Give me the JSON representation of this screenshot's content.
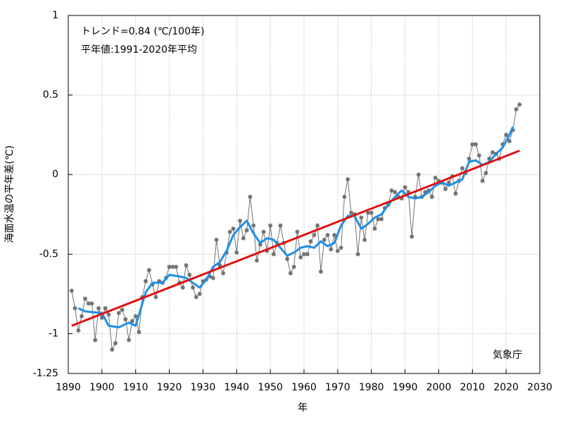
{
  "chart_data": {
    "type": "line",
    "annotations": [
      "トレンド=0.84 (℃/100年)",
      "平年値:1991-2020年平均"
    ],
    "source": "気象庁",
    "y_label": "海面水温の平年差(℃)",
    "x_label": "年",
    "xlim": [
      1890,
      2030
    ],
    "xticks": [
      1890,
      1900,
      1910,
      1920,
      1930,
      1940,
      1950,
      1960,
      1970,
      1980,
      1990,
      2000,
      2010,
      2020,
      2030
    ],
    "ylim": [
      -1.25,
      1
    ],
    "yticks": [
      1,
      0.5,
      0,
      -0.5,
      -1,
      -1.25
    ],
    "grid": true,
    "series": [
      {
        "color": "#707070",
        "line_width": 1,
        "marker": true,
        "x": [
          1891,
          1892,
          1893,
          1894,
          1895,
          1896,
          1897,
          1898,
          1899,
          1900,
          1901,
          1902,
          1903,
          1904,
          1905,
          1906,
          1907,
          1908,
          1909,
          1910,
          1911,
          1912,
          1913,
          1914,
          1915,
          1916,
          1917,
          1918,
          1919,
          1920,
          1921,
          1922,
          1923,
          1924,
          1925,
          1926,
          1927,
          1928,
          1929,
          1930,
          1931,
          1932,
          1933,
          1934,
          1935,
          1936,
          1937,
          1938,
          1939,
          1940,
          1941,
          1942,
          1943,
          1944,
          1945,
          1946,
          1947,
          1948,
          1949,
          1950,
          1951,
          1952,
          1953,
          1954,
          1955,
          1956,
          1957,
          1958,
          1959,
          1960,
          1961,
          1962,
          1963,
          1964,
          1965,
          1966,
          1967,
          1968,
          1969,
          1970,
          1971,
          1972,
          1973,
          1974,
          1975,
          1976,
          1977,
          1978,
          1979,
          1980,
          1981,
          1982,
          1983,
          1984,
          1985,
          1986,
          1987,
          1988,
          1989,
          1990,
          1991,
          1992,
          1993,
          1994,
          1995,
          1996,
          1997,
          1998,
          1999,
          2000,
          2001,
          2002,
          2003,
          2004,
          2005,
          2006,
          2007,
          2008,
          2009,
          2010,
          2011,
          2012,
          2013,
          2014,
          2015,
          2016,
          2017,
          2018,
          2019,
          2020,
          2021,
          2022,
          2023,
          2024
        ],
        "values": [
          -0.73,
          -0.84,
          -0.98,
          -0.89,
          -0.78,
          -0.81,
          -0.81,
          -1.04,
          -0.84,
          -0.9,
          -0.84,
          -0.88,
          -1.1,
          -1.06,
          -0.87,
          -0.85,
          -0.91,
          -1.04,
          -0.92,
          -0.89,
          -0.99,
          -0.77,
          -0.67,
          -0.6,
          -0.69,
          -0.77,
          -0.67,
          -0.68,
          -0.65,
          -0.58,
          -0.58,
          -0.58,
          -0.68,
          -0.71,
          -0.57,
          -0.63,
          -0.71,
          -0.77,
          -0.75,
          -0.67,
          -0.66,
          -0.64,
          -0.65,
          -0.41,
          -0.57,
          -0.62,
          -0.49,
          -0.36,
          -0.34,
          -0.49,
          -0.29,
          -0.4,
          -0.35,
          -0.14,
          -0.32,
          -0.54,
          -0.44,
          -0.36,
          -0.48,
          -0.32,
          -0.5,
          -0.43,
          -0.32,
          -0.43,
          -0.53,
          -0.62,
          -0.58,
          -0.36,
          -0.52,
          -0.5,
          -0.5,
          -0.42,
          -0.38,
          -0.32,
          -0.61,
          -0.41,
          -0.38,
          -0.47,
          -0.38,
          -0.48,
          -0.46,
          -0.14,
          -0.03,
          -0.24,
          -0.25,
          -0.5,
          -0.27,
          -0.41,
          -0.24,
          -0.24,
          -0.34,
          -0.28,
          -0.28,
          -0.21,
          -0.19,
          -0.1,
          -0.11,
          -0.14,
          -0.15,
          -0.08,
          -0.11,
          -0.39,
          -0.14,
          0.0,
          -0.14,
          -0.11,
          -0.1,
          -0.14,
          -0.02,
          -0.04,
          -0.05,
          -0.09,
          -0.05,
          -0.01,
          -0.12,
          -0.04,
          0.04,
          0.01,
          0.1,
          0.19,
          0.19,
          0.12,
          -0.04,
          0.01,
          0.1,
          0.14,
          0.13,
          0.1,
          0.19,
          0.25,
          0.21,
          0.28,
          0.41,
          0.44
        ]
      },
      {
        "color": "#1e8fe6",
        "line_width": 3,
        "marker": false,
        "x": [
          1893,
          1895,
          1900,
          1902,
          1905,
          1908,
          1910,
          1911,
          1913,
          1915,
          1918,
          1920,
          1923,
          1925,
          1927,
          1929,
          1931,
          1933,
          1935,
          1937,
          1939,
          1941,
          1943,
          1945,
          1947,
          1949,
          1951,
          1953,
          1955,
          1957,
          1959,
          1961,
          1963,
          1965,
          1967,
          1969,
          1971,
          1973,
          1975,
          1977,
          1979,
          1981,
          1983,
          1985,
          1987,
          1989,
          1991,
          1993,
          1995,
          1997,
          1999,
          2001,
          2003,
          2005,
          2007,
          2009,
          2011,
          2013,
          2015,
          2017,
          2019,
          2021,
          2022
        ],
        "values": [
          -0.84,
          -0.86,
          -0.87,
          -0.95,
          -0.96,
          -0.93,
          -0.95,
          -0.88,
          -0.74,
          -0.68,
          -0.68,
          -0.63,
          -0.64,
          -0.65,
          -0.68,
          -0.71,
          -0.66,
          -0.58,
          -0.55,
          -0.48,
          -0.38,
          -0.33,
          -0.29,
          -0.37,
          -0.43,
          -0.4,
          -0.41,
          -0.46,
          -0.51,
          -0.49,
          -0.46,
          -0.45,
          -0.46,
          -0.42,
          -0.45,
          -0.43,
          -0.32,
          -0.26,
          -0.26,
          -0.34,
          -0.31,
          -0.27,
          -0.25,
          -0.19,
          -0.14,
          -0.1,
          -0.14,
          -0.15,
          -0.14,
          -0.11,
          -0.07,
          -0.05,
          -0.07,
          -0.05,
          -0.03,
          0.08,
          0.09,
          0.06,
          0.08,
          0.13,
          0.17,
          0.25,
          0.3
        ]
      },
      {
        "color": "#e01010",
        "line_width": 3,
        "marker": false,
        "x": [
          1891,
          2024
        ],
        "values": [
          -0.95,
          0.15
        ]
      }
    ]
  }
}
